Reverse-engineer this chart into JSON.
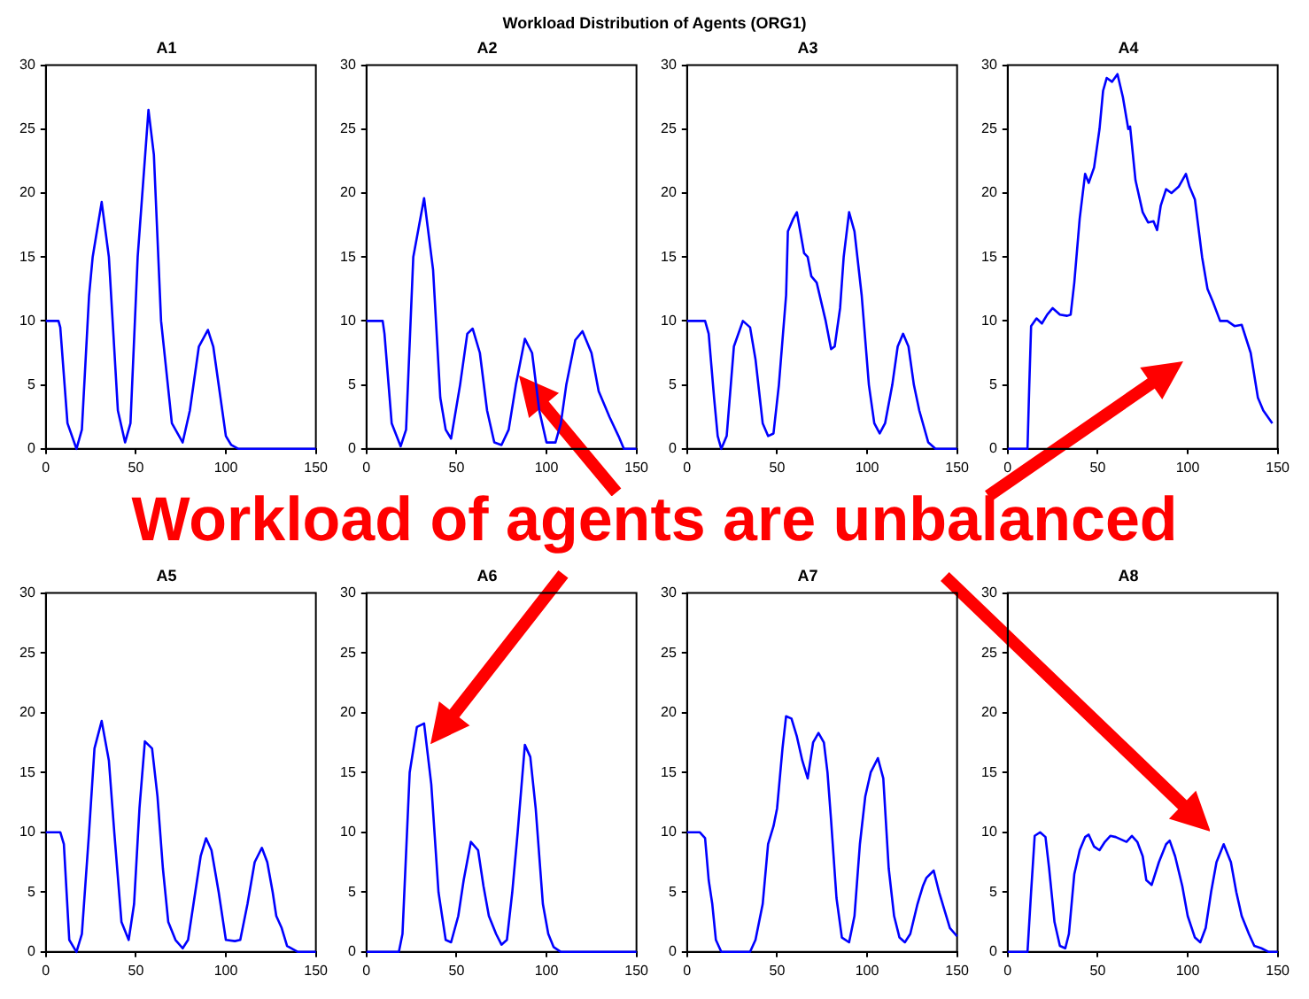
{
  "chart_data": [
    {
      "type": "other",
      "title": "Workload Distribution of Agents (ORG1)",
      "annotations": [
        "Workload of agents are unbalanced"
      ]
    },
    {
      "type": "line",
      "title": "A1",
      "color": "#0000ff",
      "xlim": [
        0,
        150
      ],
      "xticks": [
        0,
        50,
        100,
        150
      ],
      "ylim": [
        0,
        30
      ],
      "yticks": [
        0,
        5,
        10,
        15,
        20,
        25,
        30
      ],
      "x": [
        0,
        7,
        8,
        12,
        17,
        20,
        24,
        26,
        31,
        35,
        40,
        44,
        47,
        51,
        57,
        60,
        64,
        70,
        76,
        80,
        85,
        90,
        93,
        97,
        100,
        103,
        107,
        150
      ],
      "values": [
        10,
        10,
        9.5,
        2,
        0,
        1.5,
        12,
        15,
        19.3,
        15,
        3,
        0.5,
        2,
        15,
        26.5,
        23,
        10,
        2,
        0.5,
        3,
        8,
        9.3,
        8,
        4,
        1,
        0.3,
        0,
        0
      ]
    },
    {
      "type": "line",
      "title": "A2",
      "color": "#0000ff",
      "xlim": [
        0,
        150
      ],
      "xticks": [
        0,
        50,
        100,
        150
      ],
      "ylim": [
        0,
        30
      ],
      "yticks": [
        0,
        5,
        10,
        15,
        20,
        25,
        30
      ],
      "x": [
        0,
        9,
        10,
        14,
        19,
        22,
        26,
        32,
        37,
        41,
        44,
        47,
        52,
        56,
        59,
        63,
        67,
        71,
        75,
        79,
        83,
        88,
        92,
        96,
        100,
        105,
        108,
        111,
        116,
        120,
        125,
        129,
        135,
        140,
        143,
        150
      ],
      "values": [
        10,
        10,
        9,
        2,
        0.2,
        1.5,
        15,
        19.6,
        14,
        4,
        1.5,
        0.8,
        5,
        9,
        9.4,
        7.5,
        3,
        0.5,
        0.3,
        1.5,
        5,
        8.6,
        7.5,
        3,
        0.5,
        0.5,
        2,
        5,
        8.5,
        9.2,
        7.5,
        4.5,
        2.5,
        1,
        0,
        0
      ]
    },
    {
      "type": "line",
      "title": "A3",
      "color": "#0000ff",
      "xlim": [
        0,
        150
      ],
      "xticks": [
        0,
        50,
        100,
        150
      ],
      "ylim": [
        0,
        30
      ],
      "yticks": [
        0,
        5,
        10,
        15,
        20,
        25,
        30
      ],
      "x": [
        0,
        10,
        12,
        15,
        17,
        19,
        22,
        26,
        31,
        35,
        38,
        42,
        45,
        48,
        51,
        55,
        56,
        59,
        61,
        65,
        67,
        69,
        72,
        77,
        80,
        82,
        85,
        87,
        90,
        93,
        97,
        101,
        104,
        107,
        110,
        114,
        117,
        120,
        123,
        126,
        129,
        134,
        138,
        150
      ],
      "values": [
        10,
        10,
        9,
        4,
        1,
        0,
        1,
        8,
        10,
        9.5,
        7,
        2,
        1,
        1.2,
        5,
        12,
        17,
        18,
        18.5,
        15.3,
        15,
        13.5,
        13,
        10,
        7.8,
        8,
        11,
        15,
        18.5,
        17,
        12,
        5,
        2,
        1.2,
        2,
        5,
        8,
        9,
        8,
        5,
        3,
        0.5,
        0,
        0
      ]
    },
    {
      "type": "line",
      "title": "A4",
      "color": "#0000ff",
      "xlim": [
        0,
        150
      ],
      "xticks": [
        0,
        50,
        100,
        150
      ],
      "ylim": [
        0,
        30
      ],
      "yticks": [
        0,
        5,
        10,
        15,
        20,
        25,
        30
      ],
      "x": [
        0,
        11,
        12,
        13,
        16,
        19,
        22,
        25,
        29,
        33,
        35,
        37,
        40,
        43,
        45,
        48,
        51,
        53,
        55,
        58,
        61,
        64,
        67,
        68,
        71,
        75,
        78,
        81,
        83,
        85,
        88,
        91,
        95,
        99,
        101,
        104,
        108,
        111,
        114,
        118,
        122,
        126,
        130,
        135,
        139,
        142,
        147
      ],
      "values": [
        0,
        0,
        5,
        9.6,
        10.2,
        9.8,
        10.5,
        11,
        10.5,
        10.4,
        10.5,
        13,
        18,
        21.5,
        20.8,
        22,
        25,
        28,
        29,
        28.7,
        29.3,
        27.5,
        25,
        25.2,
        21,
        18.5,
        17.7,
        17.8,
        17.1,
        19,
        20.3,
        20,
        20.5,
        21.5,
        20.5,
        19.5,
        15,
        12.5,
        11.5,
        10,
        10,
        9.6,
        9.7,
        7.5,
        4,
        3,
        2
      ]
    },
    {
      "type": "line",
      "title": "A5",
      "color": "#0000ff",
      "xlim": [
        0,
        150
      ],
      "xticks": [
        0,
        50,
        100,
        150
      ],
      "ylim": [
        0,
        30
      ],
      "yticks": [
        0,
        5,
        10,
        15,
        20,
        25,
        30
      ],
      "x": [
        0,
        8,
        10,
        13,
        15,
        17,
        20,
        24,
        27,
        31,
        35,
        38,
        42,
        46,
        49,
        52,
        55,
        59,
        62,
        65,
        68,
        72,
        76,
        79,
        82,
        86,
        89,
        92,
        96,
        100,
        105,
        108,
        112,
        116,
        120,
        123,
        126,
        128,
        131,
        134,
        140,
        150
      ],
      "values": [
        10,
        10,
        9,
        1,
        0.5,
        0,
        1.5,
        10,
        17,
        19.3,
        16,
        10,
        2.5,
        1,
        4,
        12,
        17.6,
        17,
        13,
        7,
        2.5,
        1,
        0.3,
        1,
        4,
        8,
        9.5,
        8.5,
        5,
        1,
        0.9,
        1,
        4,
        7.5,
        8.7,
        7.5,
        5,
        3,
        2,
        0.5,
        0,
        0
      ]
    },
    {
      "type": "line",
      "title": "A6",
      "color": "#0000ff",
      "xlim": [
        0,
        150
      ],
      "xticks": [
        0,
        50,
        100,
        150
      ],
      "ylim": [
        0,
        30
      ],
      "yticks": [
        0,
        5,
        10,
        15,
        20,
        25,
        30
      ],
      "x": [
        0,
        18,
        20,
        24,
        28,
        32,
        36,
        40,
        44,
        47,
        51,
        54,
        58,
        62,
        65,
        68,
        72,
        75,
        78,
        81,
        84,
        88,
        91,
        94,
        98,
        101,
        104,
        108,
        150
      ],
      "values": [
        0,
        0,
        1.5,
        15,
        18.8,
        19.1,
        14,
        5,
        1,
        0.8,
        3,
        6,
        9.2,
        8.5,
        5.5,
        3,
        1.5,
        0.6,
        1,
        5,
        10,
        17.3,
        16.3,
        12,
        4,
        1.5,
        0.4,
        0,
        0
      ]
    },
    {
      "type": "line",
      "title": "A7",
      "color": "#0000ff",
      "xlim": [
        0,
        150
      ],
      "xticks": [
        0,
        50,
        100,
        150
      ],
      "ylim": [
        0,
        30
      ],
      "yticks": [
        0,
        5,
        10,
        15,
        20,
        25,
        30
      ],
      "x": [
        0,
        7,
        10,
        12,
        14,
        16,
        19,
        35,
        38,
        42,
        45,
        48,
        50,
        53,
        55,
        58,
        61,
        64,
        67,
        70,
        73,
        76,
        78,
        80,
        83,
        86,
        90,
        93,
        96,
        99,
        102,
        106,
        109,
        112,
        115,
        118,
        121,
        124,
        128,
        131,
        133,
        137,
        140,
        143,
        146,
        150
      ],
      "values": [
        10,
        10,
        9.5,
        6,
        4,
        1,
        0,
        0,
        1,
        4,
        9,
        10.5,
        12,
        17,
        19.7,
        19.5,
        18,
        16,
        14.5,
        17.5,
        18.3,
        17.5,
        15,
        11,
        4.5,
        1.2,
        0.8,
        3,
        9,
        13,
        15,
        16.2,
        14.5,
        7,
        3,
        1.2,
        0.8,
        1.5,
        4,
        5.5,
        6.2,
        6.8,
        5,
        3.5,
        2,
        1.3
      ]
    },
    {
      "type": "line",
      "title": "A8",
      "color": "#0000ff",
      "xlim": [
        0,
        150
      ],
      "xticks": [
        0,
        50,
        100,
        150
      ],
      "ylim": [
        0,
        30
      ],
      "yticks": [
        0,
        5,
        10,
        15,
        20,
        25,
        30
      ],
      "x": [
        0,
        11,
        13,
        15,
        18,
        21,
        23,
        26,
        29,
        32,
        34,
        37,
        40,
        43,
        45,
        48,
        51,
        54,
        57,
        60,
        63,
        66,
        69,
        72,
        75,
        77,
        80,
        84,
        88,
        90,
        93,
        97,
        100,
        104,
        107,
        110,
        113,
        116,
        120,
        124,
        127,
        130,
        134,
        137,
        141,
        145,
        150
      ],
      "values": [
        0,
        0,
        5,
        9.7,
        10,
        9.6,
        7,
        2.5,
        0.5,
        0.3,
        1.5,
        6.5,
        8.5,
        9.6,
        9.8,
        8.8,
        8.5,
        9.2,
        9.7,
        9.6,
        9.4,
        9.2,
        9.7,
        9.2,
        8,
        6,
        5.6,
        7.5,
        9,
        9.3,
        8,
        5.5,
        3,
        1.2,
        0.8,
        2,
        5,
        7.5,
        9,
        7.5,
        5,
        3,
        1.5,
        0.5,
        0.3,
        0,
        0
      ]
    }
  ]
}
